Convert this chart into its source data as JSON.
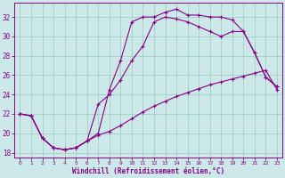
{
  "xlabel": "Windchill (Refroidissement éolien,°C)",
  "xlim": [
    -0.5,
    23.5
  ],
  "ylim": [
    17.5,
    33.5
  ],
  "xticks": [
    0,
    1,
    2,
    3,
    4,
    5,
    6,
    7,
    8,
    9,
    10,
    11,
    12,
    13,
    14,
    15,
    16,
    17,
    18,
    19,
    20,
    21,
    22,
    23
  ],
  "yticks": [
    18,
    20,
    22,
    24,
    26,
    28,
    30,
    32
  ],
  "bg_color": "#cce8e8",
  "line_color": "#880088",
  "grid_color": "#99ccbb",
  "line1_x": [
    0,
    1,
    2,
    3,
    4,
    5,
    6,
    7,
    8,
    9,
    10,
    11,
    12,
    13,
    14,
    15,
    16,
    17,
    18,
    19,
    20,
    21,
    22,
    23
  ],
  "line1_y": [
    22.0,
    21.8,
    19.5,
    18.5,
    18.3,
    18.5,
    19.2,
    20.0,
    24.5,
    27.5,
    31.5,
    32.0,
    32.0,
    32.5,
    32.8,
    32.2,
    32.2,
    32.0,
    32.0,
    31.7,
    30.5,
    28.3,
    25.8,
    24.8
  ],
  "line2_x": [
    0,
    1,
    2,
    3,
    4,
    5,
    6,
    7,
    8,
    9,
    10,
    11,
    12,
    13,
    14,
    15,
    16,
    17,
    18,
    19,
    20,
    21,
    22,
    23
  ],
  "line2_y": [
    22.0,
    21.8,
    19.5,
    18.5,
    18.3,
    18.5,
    19.2,
    23.0,
    24.0,
    25.5,
    27.5,
    29.0,
    31.5,
    32.0,
    31.8,
    31.5,
    31.0,
    30.5,
    30.0,
    30.5,
    30.5,
    28.3,
    25.8,
    24.8
  ],
  "line3_x": [
    0,
    1,
    2,
    3,
    4,
    5,
    6,
    7,
    8,
    9,
    10,
    11,
    12,
    13,
    14,
    15,
    16,
    17,
    18,
    19,
    20,
    21,
    22,
    23
  ],
  "line3_y": [
    22.0,
    21.8,
    19.5,
    18.5,
    18.3,
    18.5,
    19.2,
    19.8,
    20.2,
    20.8,
    21.5,
    22.2,
    22.8,
    23.3,
    23.8,
    24.2,
    24.6,
    25.0,
    25.3,
    25.6,
    25.9,
    26.2,
    26.5,
    24.5
  ]
}
